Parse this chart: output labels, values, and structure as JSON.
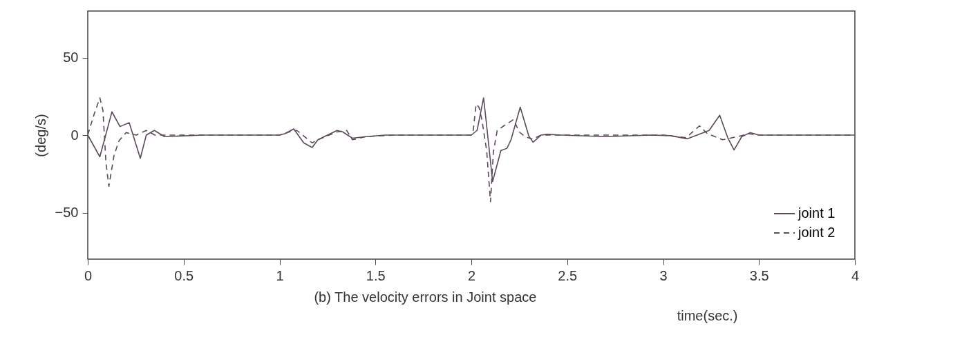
{
  "chart_data": {
    "type": "line",
    "xlabel": "time(sec.)",
    "ylabel": "(deg/s)",
    "annotations": [
      "(b) The velocity errors in Joint space"
    ],
    "xlim": [
      0,
      4
    ],
    "ylim": [
      -80,
      80
    ],
    "xticks": [
      0,
      0.5,
      1,
      1.5,
      2,
      2.5,
      3,
      3.5,
      4
    ],
    "yticks": [
      -50,
      0,
      50
    ],
    "grid": false,
    "legend": "bottom right",
    "marker": "none",
    "series": [
      {
        "name": "joint 1",
        "color": "#5a4a5a",
        "line_style": "solid",
        "x": [
          0,
          0.063,
          0.126,
          0.168,
          0.216,
          0.274,
          0.305,
          0.347,
          0.4,
          0.6,
          1.0,
          1.03,
          1.074,
          1.126,
          1.17,
          1.2,
          1.25,
          1.3,
          1.33,
          1.38,
          1.45,
          1.55,
          1.8,
          2.0,
          2.03,
          2.064,
          2.08,
          2.111,
          2.154,
          2.186,
          2.207,
          2.255,
          2.3,
          2.322,
          2.364,
          2.395,
          2.47,
          2.7,
          2.935,
          3.04,
          3.125,
          3.21,
          3.24,
          3.295,
          3.337,
          3.37,
          3.41,
          3.455,
          3.5,
          3.8,
          4.0
        ],
        "values": [
          0,
          -14,
          15,
          5.5,
          8,
          -15,
          0,
          3,
          -1,
          0,
          0,
          1,
          4,
          -5,
          -8,
          -3,
          0,
          3,
          2,
          -2,
          -1,
          0,
          0,
          0,
          3,
          24,
          6,
          -30,
          -10,
          -8.5,
          -3,
          18,
          -0.7,
          -4.6,
          0,
          0.5,
          0,
          -1,
          0,
          -0.4,
          -2.4,
          1.6,
          3,
          12.8,
          -1.7,
          -9.6,
          -1,
          1.6,
          0,
          0,
          0
        ]
      },
      {
        "name": "joint 2",
        "color": "#5a4a5a",
        "line_style": "dashed",
        "x": [
          0,
          0.032,
          0.063,
          0.079,
          0.095,
          0.11,
          0.137,
          0.163,
          0.2,
          0.253,
          0.305,
          0.35,
          0.6,
          1.0,
          1.05,
          1.09,
          1.17,
          1.2,
          1.3,
          1.35,
          1.38,
          1.45,
          1.6,
          2.0,
          2.01,
          2.025,
          2.04,
          2.055,
          2.08,
          2.1,
          2.115,
          2.135,
          2.17,
          2.22,
          2.25,
          2.28,
          2.32,
          2.364,
          2.7,
          3.0,
          3.12,
          3.19,
          3.23,
          3.31,
          3.35,
          3.41,
          3.44,
          3.5,
          4.0
        ],
        "values": [
          0,
          13,
          24,
          16,
          -18,
          -33,
          -13,
          -3.7,
          1.6,
          0,
          3,
          0,
          0,
          0,
          2,
          3,
          -5,
          -3,
          2,
          3,
          -3,
          -1,
          0,
          0,
          3,
          20,
          18,
          10,
          -10,
          -43,
          -11,
          3,
          6,
          10,
          2,
          -1,
          -2.6,
          0,
          0,
          0,
          -1.7,
          6,
          1,
          -3,
          -2,
          -0.4,
          1,
          0,
          0
        ]
      }
    ]
  }
}
